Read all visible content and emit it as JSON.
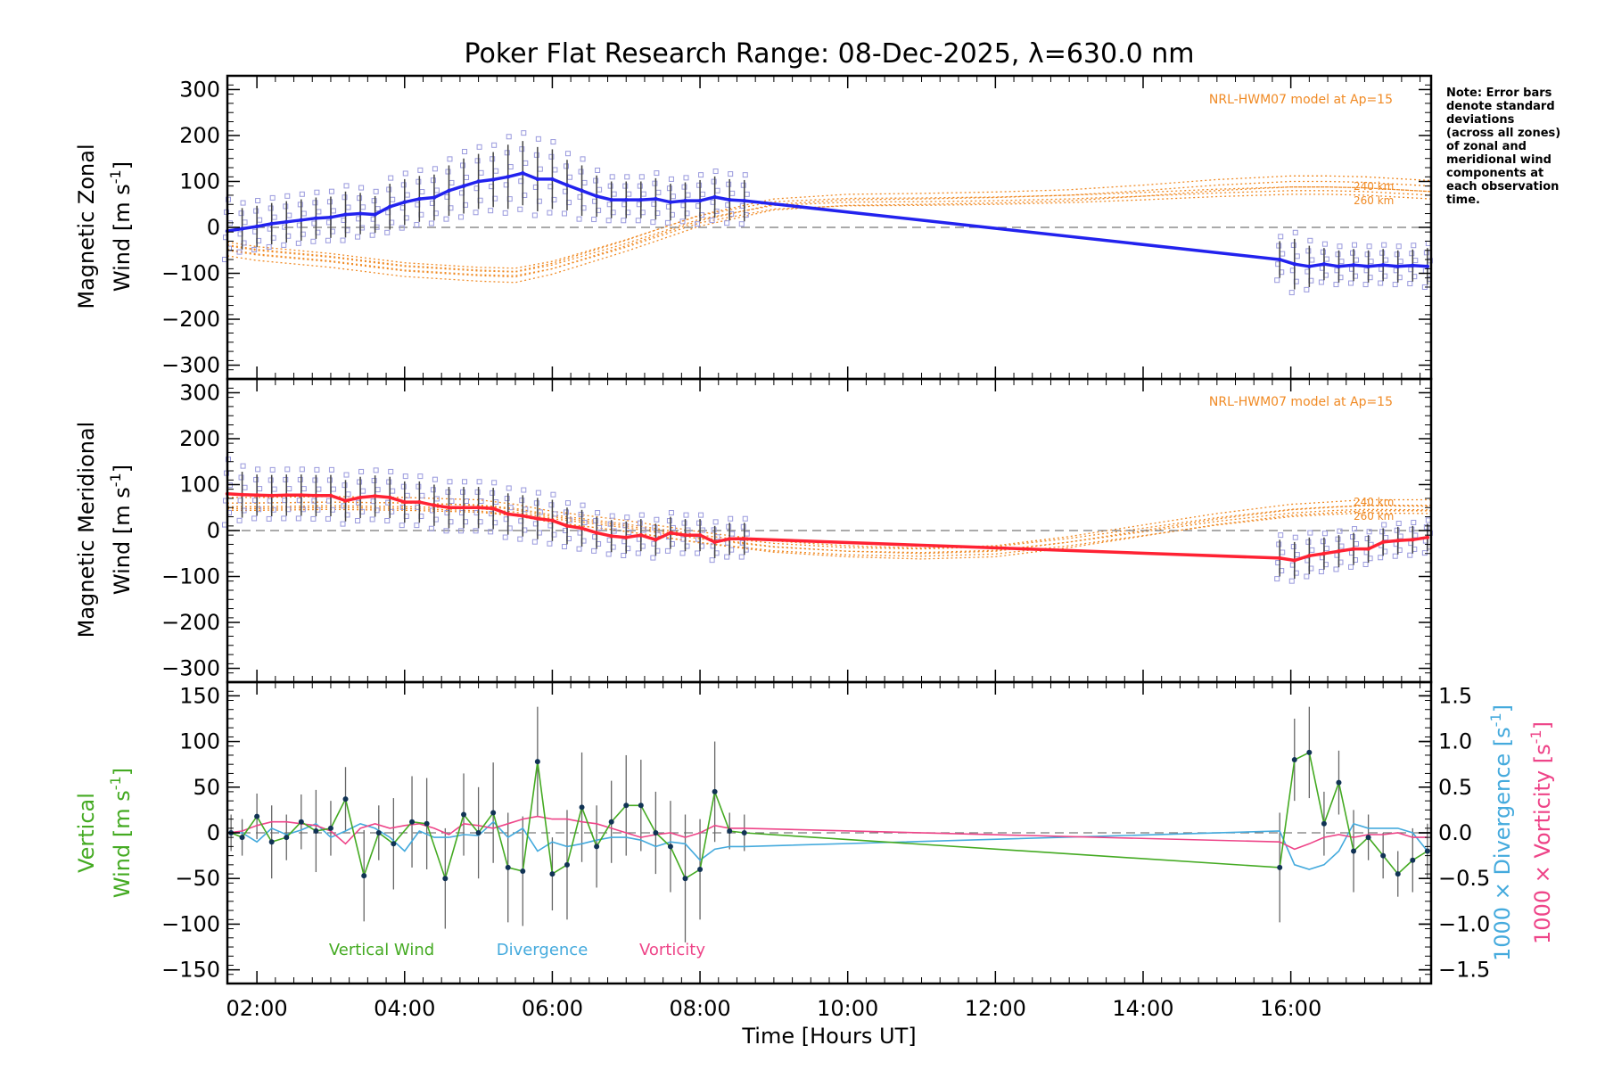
{
  "colors": {
    "zonal": "#2222ee",
    "meridional": "#ff2233",
    "vertical": "#44aa22",
    "divergence": "#44aadd",
    "vorticity": "#ee4488",
    "model": "#f08a24",
    "zones": "#9999dd"
  },
  "labels": {
    "title": "Poker Flat Research Range: 08-Dec-2025, λ=630.0 nm",
    "note": [
      "Note: Error bars",
      "denote standard",
      "deviations",
      "(across all zones)",
      "of zonal and",
      "meridional wind",
      "components at",
      "each observation",
      "time."
    ],
    "model": "NRL-HWM07 model at Ap=15",
    "km_240": "240 km",
    "km_260": "260 km",
    "xlabel": "Time [Hours UT]",
    "zonal_ylabel1": "Magnetic Zonal",
    "zonal_ylabel2": "Wind [m s",
    "merid_ylabel1": "Magnetic Meridional",
    "merid_ylabel2": "Wind [m s",
    "vert_ylabel1": "Vertical",
    "vert_ylabel2": "Wind [m s",
    "div_ylabel": "1000 × Divergence [s",
    "vort_ylabel": "1000 × Vorticity [s",
    "unit_sup": "-1",
    "unit_close": "]",
    "legend_vertical": "Vertical Wind",
    "legend_divergence": "Divergence",
    "legend_vorticity": "Vorticity"
  },
  "chart_data": [
    {
      "type": "line",
      "panel": "zonal",
      "title": "Poker Flat Research Range: 08-Dec-2025, λ=630.0 nm",
      "ylabel": "Magnetic Zonal Wind [m s-1]",
      "xlim": [
        1.6,
        17.9
      ],
      "ylim": [
        -330,
        330
      ],
      "yticks": [
        -300,
        -200,
        -100,
        0,
        100,
        200,
        300
      ],
      "series": [
        {
          "name": "Magnetic Zonal Wind",
          "x": [
            1.6,
            1.8,
            2.0,
            2.2,
            2.4,
            2.6,
            2.8,
            3.0,
            3.2,
            3.4,
            3.6,
            3.8,
            4.0,
            4.2,
            4.4,
            4.6,
            4.8,
            5.0,
            5.2,
            5.4,
            5.6,
            5.8,
            6.0,
            6.2,
            6.4,
            6.6,
            6.8,
            7.0,
            7.2,
            7.4,
            7.6,
            7.8,
            8.0,
            8.2,
            8.4,
            8.6,
            15.85,
            16.05,
            16.25,
            16.45,
            16.65,
            16.85,
            17.05,
            17.25,
            17.45,
            17.65,
            17.85
          ],
          "values": [
            -8,
            -3,
            2,
            8,
            12,
            16,
            20,
            22,
            28,
            30,
            28,
            45,
            55,
            62,
            65,
            80,
            90,
            100,
            104,
            110,
            118,
            105,
            105,
            92,
            80,
            68,
            60,
            60,
            60,
            62,
            55,
            58,
            58,
            66,
            60,
            58,
            -70,
            -80,
            -85,
            -80,
            -85,
            -82,
            -85,
            -82,
            -85,
            -83,
            -85
          ],
          "errors": [
            55,
            45,
            45,
            45,
            45,
            45,
            45,
            45,
            50,
            45,
            40,
            50,
            50,
            50,
            50,
            55,
            60,
            60,
            60,
            70,
            70,
            70,
            65,
            55,
            55,
            45,
            40,
            40,
            40,
            45,
            40,
            40,
            45,
            45,
            45,
            45,
            40,
            55,
            45,
            35,
            35,
            35,
            35,
            35,
            35,
            35,
            40
          ]
        },
        {
          "name": "NRL-HWM07 model at Ap=15 (240 km)",
          "x": [
            1.6,
            2,
            3,
            4,
            5,
            5.5,
            6,
            7,
            8,
            9,
            10,
            11,
            12,
            13,
            14,
            15,
            16,
            16.5,
            17,
            17.9
          ],
          "values": [
            -50,
            -60,
            -75,
            -95,
            -105,
            -108,
            -90,
            -40,
            15,
            50,
            60,
            62,
            65,
            70,
            80,
            92,
            100,
            100,
            98,
            90
          ]
        },
        {
          "name": "NRL-HWM07 model at Ap=15 (260 km)",
          "x": [
            1.6,
            2,
            3,
            4,
            5,
            5.5,
            6,
            7,
            8,
            9,
            10,
            11,
            12,
            13,
            14,
            15,
            16,
            16.5,
            17,
            17.9
          ],
          "values": [
            -40,
            -50,
            -65,
            -85,
            -95,
            -97,
            -82,
            -35,
            18,
            48,
            55,
            56,
            58,
            62,
            68,
            75,
            80,
            80,
            78,
            70
          ]
        }
      ]
    },
    {
      "type": "line",
      "panel": "meridional",
      "ylabel": "Magnetic Meridional Wind [m s-1]",
      "xlim": [
        1.6,
        17.9
      ],
      "ylim": [
        -330,
        330
      ],
      "yticks": [
        -300,
        -200,
        -100,
        0,
        100,
        200,
        300
      ],
      "series": [
        {
          "name": "Magnetic Meridional Wind",
          "x": [
            1.6,
            1.8,
            2.0,
            2.2,
            2.4,
            2.6,
            2.8,
            3.0,
            3.2,
            3.4,
            3.6,
            3.8,
            4.0,
            4.2,
            4.4,
            4.6,
            4.8,
            5.0,
            5.2,
            5.4,
            5.6,
            5.8,
            6.0,
            6.2,
            6.4,
            6.6,
            6.8,
            7.0,
            7.2,
            7.4,
            7.6,
            7.8,
            8.0,
            8.2,
            8.4,
            8.6,
            15.85,
            16.05,
            16.25,
            16.45,
            16.65,
            16.85,
            17.05,
            17.25,
            17.45,
            17.65,
            17.85
          ],
          "values": [
            80,
            78,
            77,
            76,
            77,
            77,
            76,
            76,
            65,
            72,
            75,
            72,
            62,
            62,
            55,
            50,
            50,
            50,
            48,
            36,
            32,
            26,
            22,
            10,
            5,
            -5,
            -12,
            -15,
            -10,
            -20,
            -5,
            -10,
            -10,
            -25,
            -18,
            -18,
            -60,
            -65,
            -55,
            -50,
            -45,
            -40,
            -40,
            -25,
            -22,
            -20,
            -15
          ],
          "errors": [
            60,
            50,
            45,
            45,
            45,
            45,
            45,
            45,
            45,
            45,
            45,
            45,
            45,
            45,
            45,
            45,
            45,
            45,
            45,
            45,
            45,
            45,
            45,
            40,
            40,
            35,
            35,
            35,
            35,
            35,
            35,
            35,
            35,
            35,
            35,
            35,
            40,
            40,
            40,
            35,
            35,
            35,
            30,
            30,
            30,
            30,
            30
          ]
        },
        {
          "name": "NRL-HWM07 model at Ap=15 (240 km)",
          "x": [
            1.6,
            2,
            3,
            4,
            5,
            5.5,
            6,
            7,
            8,
            9,
            10,
            11,
            12,
            13,
            14,
            15,
            16,
            16.5,
            17,
            17.9
          ],
          "values": [
            60,
            60,
            62,
            60,
            55,
            45,
            30,
            10,
            -15,
            -35,
            -45,
            -50,
            -45,
            -25,
            0,
            25,
            45,
            50,
            55,
            55
          ]
        },
        {
          "name": "NRL-HWM07 model at Ap=15 (260 km)",
          "x": [
            1.6,
            2,
            3,
            4,
            5,
            5.5,
            6,
            7,
            8,
            9,
            10,
            11,
            12,
            13,
            14,
            15,
            16,
            16.5,
            17,
            17.9
          ],
          "values": [
            52,
            52,
            54,
            52,
            48,
            40,
            26,
            6,
            -18,
            -36,
            -45,
            -48,
            -43,
            -25,
            -3,
            20,
            38,
            43,
            46,
            45
          ]
        }
      ]
    },
    {
      "type": "line",
      "panel": "vertical",
      "ylabel": "Vertical Wind [m s-1]",
      "xlabel": "Time [Hours UT]",
      "xlim": [
        1.6,
        17.9
      ],
      "xticks": [
        2,
        4,
        6,
        8,
        10,
        12,
        14,
        16
      ],
      "xtick_labels": [
        "02:00",
        "04:00",
        "06:00",
        "08:00",
        "10:00",
        "12:00",
        "14:00",
        "16:00"
      ],
      "ylim": [
        -165,
        165
      ],
      "yticks": [
        -150,
        -100,
        -50,
        0,
        50,
        100,
        150
      ],
      "y2label": "1000 × Divergence [s-1] / 1000 × Vorticity [s-1]",
      "y2lim": [
        -1.65,
        1.65
      ],
      "y2ticks": [
        -1.5,
        -1.0,
        -0.5,
        0.0,
        0.5,
        1.0,
        1.5
      ],
      "y2tick_labels": [
        "-1.5",
        "-1.0",
        "-0.5",
        "0.0",
        "0.5",
        "1.0",
        "1.5"
      ],
      "legend": [
        "Vertical Wind",
        "Divergence",
        "Vorticity"
      ],
      "series": [
        {
          "name": "Vertical Wind",
          "x": [
            1.65,
            1.8,
            2.0,
            2.2,
            2.4,
            2.6,
            2.8,
            3.0,
            3.2,
            3.45,
            3.65,
            3.85,
            4.1,
            4.3,
            4.55,
            4.8,
            5.0,
            5.2,
            5.4,
            5.6,
            5.8,
            6.0,
            6.2,
            6.4,
            6.6,
            6.8,
            7.0,
            7.2,
            7.4,
            7.6,
            7.8,
            8.0,
            8.2,
            8.4,
            8.6,
            15.85,
            16.05,
            16.25,
            16.45,
            16.65,
            16.85,
            17.05,
            17.25,
            17.45,
            17.65,
            17.85
          ],
          "values": [
            0,
            -5,
            18,
            -10,
            -5,
            12,
            2,
            5,
            37,
            -47,
            0,
            -12,
            12,
            10,
            -50,
            20,
            0,
            22,
            -38,
            -42,
            78,
            -45,
            -35,
            28,
            -15,
            12,
            30,
            30,
            0,
            -15,
            -50,
            -40,
            45,
            2,
            0,
            -38,
            80,
            88,
            10,
            55,
            -20,
            -5,
            -25,
            -45,
            -30,
            -20
          ],
          "errors": [
            20,
            20,
            25,
            40,
            25,
            30,
            45,
            30,
            35,
            50,
            30,
            50,
            50,
            50,
            55,
            45,
            50,
            55,
            60,
            60,
            60,
            40,
            60,
            60,
            45,
            45,
            55,
            50,
            45,
            50,
            70,
            55,
            55,
            20,
            20,
            60,
            45,
            50,
            35,
            35,
            45,
            25,
            25,
            25,
            35,
            30
          ]
        },
        {
          "name": "Divergence",
          "x": [
            1.6,
            1.8,
            2.0,
            2.2,
            2.4,
            2.6,
            2.8,
            3.0,
            3.2,
            3.4,
            3.6,
            3.8,
            4.0,
            4.2,
            4.4,
            4.6,
            4.8,
            5.0,
            5.2,
            5.4,
            5.6,
            5.8,
            6.0,
            6.2,
            6.4,
            6.6,
            6.8,
            7.0,
            7.2,
            7.4,
            7.6,
            7.8,
            8.0,
            8.2,
            8.4,
            8.6,
            15.85,
            16.05,
            16.25,
            16.45,
            16.65,
            16.85,
            17.05,
            17.25,
            17.45,
            17.65,
            17.85
          ],
          "values": [
            0.0,
            0.0,
            -0.1,
            0.05,
            -0.02,
            0.03,
            0.1,
            -0.05,
            0.02,
            0.1,
            0.05,
            -0.05,
            -0.2,
            0.02,
            -0.05,
            -0.05,
            -0.02,
            -0.03,
            0.12,
            -0.05,
            0.05,
            -0.2,
            -0.1,
            -0.15,
            -0.12,
            -0.08,
            -0.05,
            -0.05,
            -0.08,
            -0.15,
            -0.1,
            -0.12,
            -0.3,
            -0.18,
            -0.15,
            -0.15,
            0.02,
            -0.35,
            -0.4,
            -0.35,
            -0.2,
            0.1,
            0.05,
            0.05,
            0.05,
            0.0,
            -0.2
          ]
        },
        {
          "name": "Vorticity",
          "x": [
            1.6,
            1.8,
            2.0,
            2.2,
            2.4,
            2.6,
            2.8,
            3.0,
            3.2,
            3.4,
            3.6,
            3.8,
            4.0,
            4.2,
            4.4,
            4.6,
            4.8,
            5.0,
            5.2,
            5.4,
            5.6,
            5.8,
            6.0,
            6.2,
            6.4,
            6.6,
            6.8,
            7.0,
            7.2,
            7.4,
            7.6,
            7.8,
            8.0,
            8.2,
            8.4,
            8.6,
            15.85,
            16.05,
            16.25,
            16.45,
            16.65,
            16.85,
            17.05,
            17.25,
            17.45,
            17.65,
            17.85
          ],
          "values": [
            0.0,
            0.02,
            0.08,
            0.12,
            0.12,
            0.1,
            0.08,
            0.02,
            -0.12,
            0.05,
            0.1,
            0.05,
            0.08,
            0.1,
            0.05,
            -0.02,
            0.1,
            0.08,
            0.05,
            0.1,
            0.15,
            0.18,
            0.15,
            0.15,
            0.12,
            0.1,
            0.05,
            0.0,
            -0.05,
            -0.02,
            0.0,
            -0.05,
            0.0,
            0.08,
            0.05,
            0.05,
            -0.1,
            -0.18,
            -0.12,
            -0.05,
            -0.02,
            -0.05,
            -0.02,
            -0.02,
            0.0,
            -0.05,
            -0.05
          ]
        }
      ]
    }
  ]
}
